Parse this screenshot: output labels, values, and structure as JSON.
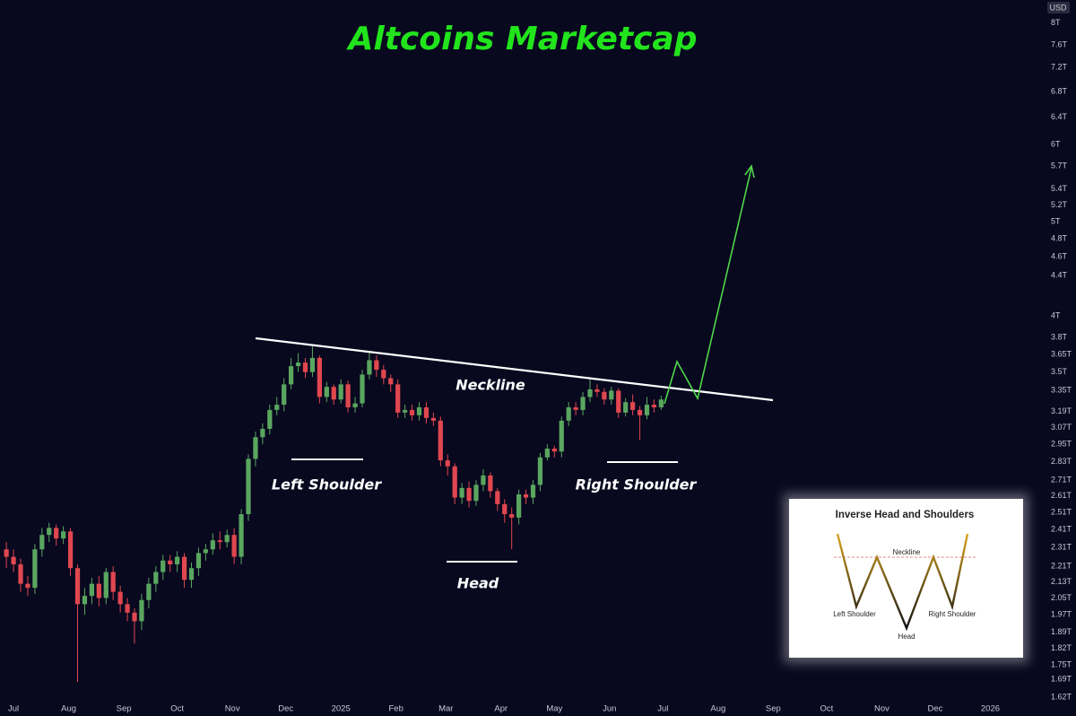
{
  "chart_data": {
    "type": "candlestick",
    "title": "Altcoins Marketcap",
    "currency": "USD",
    "annotations": [
      "Neckline",
      "Left Shoulder",
      "Head",
      "Right Shoulder"
    ],
    "inset": {
      "title": "Inverse Head and Shoulders",
      "labels": [
        "Neckline",
        "Left Shoulder",
        "Head",
        "Right Shoulder"
      ]
    },
    "up_color": "#5aa65f",
    "down_color": "#e0474f",
    "log_scale": true,
    "grid": false,
    "categories": [
      null,
      null,
      null,
      null,
      null,
      null,
      null,
      null,
      null,
      null,
      null,
      null,
      null,
      null,
      null,
      null,
      null,
      null,
      null,
      null,
      null,
      null,
      null,
      null,
      null,
      null,
      null,
      null,
      null,
      null,
      null,
      null,
      null,
      null,
      null,
      null,
      null,
      null,
      null,
      null,
      null,
      null,
      null,
      null,
      null,
      null,
      null,
      null,
      null,
      null,
      null,
      null,
      null,
      null,
      null,
      null,
      null,
      null,
      null,
      null,
      null,
      null,
      null,
      null,
      null,
      null,
      null,
      null,
      null,
      null,
      null,
      null,
      null,
      null,
      null,
      null,
      null,
      null,
      null,
      null,
      null,
      null,
      null,
      null,
      null,
      null,
      null,
      null,
      null,
      null,
      null,
      null,
      null
    ],
    "open": [
      2.3,
      2.26,
      2.22,
      2.12,
      2.1,
      2.3,
      2.38,
      2.42,
      2.36,
      2.4,
      2.2,
      2.02,
      2.06,
      2.12,
      2.05,
      2.18,
      2.08,
      2.02,
      1.98,
      1.94,
      2.04,
      2.12,
      2.18,
      2.24,
      2.22,
      2.26,
      2.14,
      2.2,
      2.28,
      2.3,
      2.35,
      2.34,
      2.38,
      2.26,
      2.5,
      2.85,
      3.0,
      3.06,
      3.2,
      3.24,
      3.4,
      3.55,
      3.58,
      3.5,
      3.62,
      3.3,
      3.38,
      3.28,
      3.4,
      3.22,
      3.25,
      3.48,
      3.6,
      3.52,
      3.45,
      3.4,
      3.18,
      3.2,
      3.16,
      3.22,
      3.14,
      3.12,
      2.84,
      2.8,
      2.6,
      2.66,
      2.58,
      2.68,
      2.74,
      2.64,
      2.56,
      2.5,
      2.48,
      2.62,
      2.6,
      2.68,
      2.86,
      2.92,
      2.9,
      3.12,
      3.22,
      3.2,
      3.3,
      3.36,
      3.34,
      3.28,
      3.35,
      3.18,
      3.26,
      3.2,
      3.16,
      3.24,
      3.22
    ],
    "high": [
      2.34,
      2.3,
      2.25,
      2.16,
      2.33,
      2.42,
      2.45,
      2.44,
      2.43,
      2.42,
      2.22,
      2.1,
      2.15,
      2.16,
      2.2,
      2.21,
      2.11,
      2.05,
      2.0,
      2.07,
      2.15,
      2.21,
      2.27,
      2.27,
      2.29,
      2.28,
      2.23,
      2.31,
      2.33,
      2.39,
      2.4,
      2.41,
      2.42,
      2.53,
      2.88,
      3.04,
      3.1,
      3.24,
      3.3,
      3.45,
      3.62,
      3.66,
      3.62,
      3.72,
      3.64,
      3.42,
      3.4,
      3.44,
      3.43,
      3.3,
      3.52,
      3.68,
      3.64,
      3.56,
      3.48,
      3.44,
      3.24,
      3.24,
      3.26,
      3.26,
      3.18,
      3.15,
      2.88,
      2.82,
      2.69,
      2.7,
      2.71,
      2.78,
      2.76,
      2.66,
      2.59,
      2.54,
      2.65,
      2.65,
      2.71,
      2.89,
      2.95,
      2.94,
      3.15,
      3.26,
      3.26,
      3.34,
      3.44,
      3.4,
      3.37,
      3.38,
      3.37,
      3.29,
      3.32,
      3.23,
      3.3,
      3.28,
      3.31
    ],
    "low": [
      2.2,
      2.18,
      2.08,
      2.06,
      2.07,
      2.26,
      2.34,
      2.32,
      2.33,
      2.16,
      1.68,
      1.97,
      2.02,
      2.01,
      2.02,
      2.04,
      1.98,
      1.94,
      1.84,
      1.9,
      2.0,
      2.08,
      2.14,
      2.18,
      2.18,
      2.1,
      2.1,
      2.16,
      2.24,
      2.27,
      2.3,
      2.31,
      2.22,
      2.22,
      2.46,
      2.8,
      2.95,
      3.02,
      3.16,
      3.19,
      3.36,
      3.5,
      3.45,
      3.46,
      3.25,
      3.26,
      3.24,
      3.25,
      3.18,
      3.18,
      3.22,
      3.44,
      3.46,
      3.4,
      3.34,
      3.14,
      3.14,
      3.12,
      3.12,
      3.1,
      3.08,
      2.8,
      2.74,
      2.56,
      2.56,
      2.54,
      2.55,
      2.64,
      2.6,
      2.52,
      2.45,
      2.3,
      2.44,
      2.56,
      2.56,
      2.64,
      2.84,
      2.86,
      2.86,
      3.08,
      3.16,
      3.16,
      3.26,
      3.3,
      3.24,
      3.24,
      3.14,
      3.15,
      3.16,
      2.98,
      3.13,
      3.18,
      3.2
    ],
    "close": [
      2.26,
      2.22,
      2.12,
      2.1,
      2.3,
      2.38,
      2.42,
      2.36,
      2.4,
      2.2,
      2.02,
      2.06,
      2.12,
      2.05,
      2.18,
      2.08,
      2.02,
      1.98,
      1.94,
      2.04,
      2.12,
      2.18,
      2.24,
      2.22,
      2.26,
      2.14,
      2.2,
      2.28,
      2.3,
      2.35,
      2.34,
      2.38,
      2.26,
      2.5,
      2.85,
      3.0,
      3.06,
      3.2,
      3.24,
      3.4,
      3.55,
      3.58,
      3.5,
      3.62,
      3.3,
      3.38,
      3.28,
      3.4,
      3.22,
      3.25,
      3.48,
      3.6,
      3.52,
      3.45,
      3.4,
      3.18,
      3.2,
      3.16,
      3.22,
      3.14,
      3.12,
      2.84,
      2.8,
      2.6,
      2.66,
      2.58,
      2.68,
      2.74,
      2.64,
      2.56,
      2.5,
      2.48,
      2.62,
      2.6,
      2.68,
      2.86,
      2.92,
      2.9,
      3.12,
      3.22,
      3.2,
      3.3,
      3.36,
      3.34,
      3.28,
      3.35,
      3.18,
      3.26,
      3.2,
      3.16,
      3.24,
      3.22,
      3.28
    ],
    "xlim": [
      -0.9,
      145.5
    ],
    "xticks": [
      {
        "value": 1,
        "label": "Jul"
      },
      {
        "value": 8.75,
        "label": "Aug"
      },
      {
        "value": 16.5,
        "label": "Sep"
      },
      {
        "value": 24,
        "label": "Oct"
      },
      {
        "value": 31.75,
        "label": "Nov"
      },
      {
        "value": 39.25,
        "label": "Dec"
      },
      {
        "value": 47,
        "label": "2025"
      },
      {
        "value": 54.75,
        "label": "Feb"
      },
      {
        "value": 61.75,
        "label": "Mar"
      },
      {
        "value": 69.5,
        "label": "Apr"
      },
      {
        "value": 77,
        "label": "May"
      },
      {
        "value": 84.75,
        "label": "Jun"
      },
      {
        "value": 92.25,
        "label": "Jul"
      },
      {
        "value": 100,
        "label": "Aug"
      },
      {
        "value": 107.75,
        "label": "Sep"
      },
      {
        "value": 115.25,
        "label": "Oct"
      },
      {
        "value": 123,
        "label": "Nov"
      },
      {
        "value": 130.5,
        "label": "Dec"
      },
      {
        "value": 138.25,
        "label": "2026"
      }
    ],
    "ylim": [
      1.55,
      8.45
    ],
    "yticks": [
      {
        "value": 8,
        "label": "8T"
      },
      {
        "value": 7.6,
        "label": "7.6T"
      },
      {
        "value": 7.2,
        "label": "7.2T"
      },
      {
        "value": 6.8,
        "label": "6.8T"
      },
      {
        "value": 6.4,
        "label": "6.4T"
      },
      {
        "value": 6,
        "label": "6T"
      },
      {
        "value": 5.7,
        "label": "5.7T"
      },
      {
        "value": 5.4,
        "label": "5.4T"
      },
      {
        "value": 5.2,
        "label": "5.2T"
      },
      {
        "value": 5,
        "label": "5T"
      },
      {
        "value": 4.8,
        "label": "4.8T"
      },
      {
        "value": 4.6,
        "label": "4.6T"
      },
      {
        "value": 4.4,
        "label": "4.4T"
      },
      {
        "value": 4,
        "label": "4T"
      },
      {
        "value": 3.8,
        "label": "3.8T"
      },
      {
        "value": 3.65,
        "label": "3.65T"
      },
      {
        "value": 3.5,
        "label": "3.5T"
      },
      {
        "value": 3.35,
        "label": "3.35T"
      },
      {
        "value": 3.19,
        "label": "3.19T"
      },
      {
        "value": 3.07,
        "label": "3.07T"
      },
      {
        "value": 2.95,
        "label": "2.95T"
      },
      {
        "value": 2.83,
        "label": "2.83T"
      },
      {
        "value": 2.71,
        "label": "2.71T"
      },
      {
        "value": 2.61,
        "label": "2.61T"
      },
      {
        "value": 2.51,
        "label": "2.51T"
      },
      {
        "value": 2.41,
        "label": "2.41T"
      },
      {
        "value": 2.31,
        "label": "2.31T"
      },
      {
        "value": 2.21,
        "label": "2.21T"
      },
      {
        "value": 2.13,
        "label": "2.13T"
      },
      {
        "value": 2.05,
        "label": "2.05T"
      },
      {
        "value": 1.97,
        "label": "1.97T"
      },
      {
        "value": 1.89,
        "label": "1.89T"
      },
      {
        "value": 1.82,
        "label": "1.82T"
      },
      {
        "value": 1.75,
        "label": "1.75T"
      },
      {
        "value": 1.69,
        "label": "1.69T"
      },
      {
        "value": 1.62,
        "label": "1.62T"
      }
    ]
  }
}
